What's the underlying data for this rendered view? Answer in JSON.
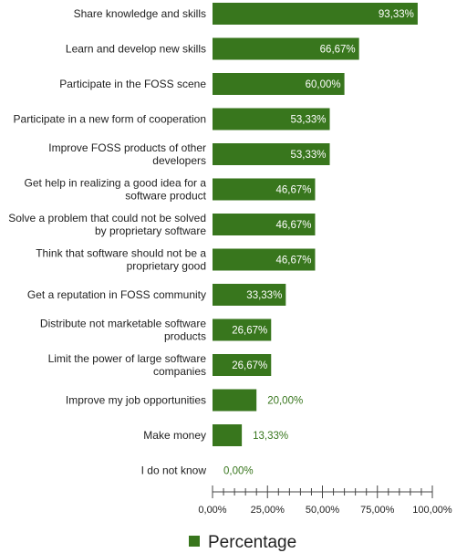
{
  "chart_data": {
    "type": "bar",
    "orientation": "horizontal",
    "categories": [
      "Share knowledge and skills",
      "Learn and develop new skills",
      "Participate in the FOSS scene",
      "Participate in a new form of cooperation",
      "Improve FOSS products of other developers",
      "Get help in realizing a good idea for a software product",
      "Solve a problem that could not be solved by proprietary software",
      "Think that software should not be a proprietary good",
      "Get a reputation in FOSS community",
      "Distribute not marketable software products",
      "Limit the power of large software companies",
      "Improve my job opportunities",
      "Make money",
      "I do not know"
    ],
    "category_lines": [
      [
        "Share knowledge and skills"
      ],
      [
        "Learn and develop new skills"
      ],
      [
        "Participate in the FOSS scene"
      ],
      [
        "Participate in a new form of cooperation"
      ],
      [
        "Improve FOSS products of other",
        "developers"
      ],
      [
        "Get help in realizing a good idea for a",
        "software product"
      ],
      [
        "Solve a problem that could not be solved",
        "by proprietary software"
      ],
      [
        "Think that software should not be a",
        "proprietary good"
      ],
      [
        "Get a reputation in FOSS community"
      ],
      [
        "Distribute not marketable software",
        "products"
      ],
      [
        "Limit the power of large software",
        "companies"
      ],
      [
        "Improve my job opportunities"
      ],
      [
        "Make money"
      ],
      [
        "I do not know"
      ]
    ],
    "values": [
      93.33,
      66.67,
      60.0,
      53.33,
      53.33,
      46.67,
      46.67,
      46.67,
      33.33,
      26.67,
      26.67,
      20.0,
      13.33,
      0.0
    ],
    "value_labels": [
      "93,33%",
      "66,67%",
      "60,00%",
      "53,33%",
      "53,33%",
      "46,67%",
      "46,67%",
      "46,67%",
      "33,33%",
      "26,67%",
      "26,67%",
      "20,00%",
      "13,33%",
      "0,00%"
    ],
    "xlim": [
      0,
      100
    ],
    "xticks": [
      0,
      25,
      50,
      75,
      100
    ],
    "xtick_labels": [
      "0,00%",
      "25,00%",
      "50,00%",
      "75,00%",
      "100,00%"
    ],
    "series": [
      {
        "name": "Percentage",
        "color": "#38761d"
      }
    ],
    "legend_position": "bottom",
    "grid": false,
    "title": "",
    "xlabel": "",
    "ylabel": ""
  }
}
